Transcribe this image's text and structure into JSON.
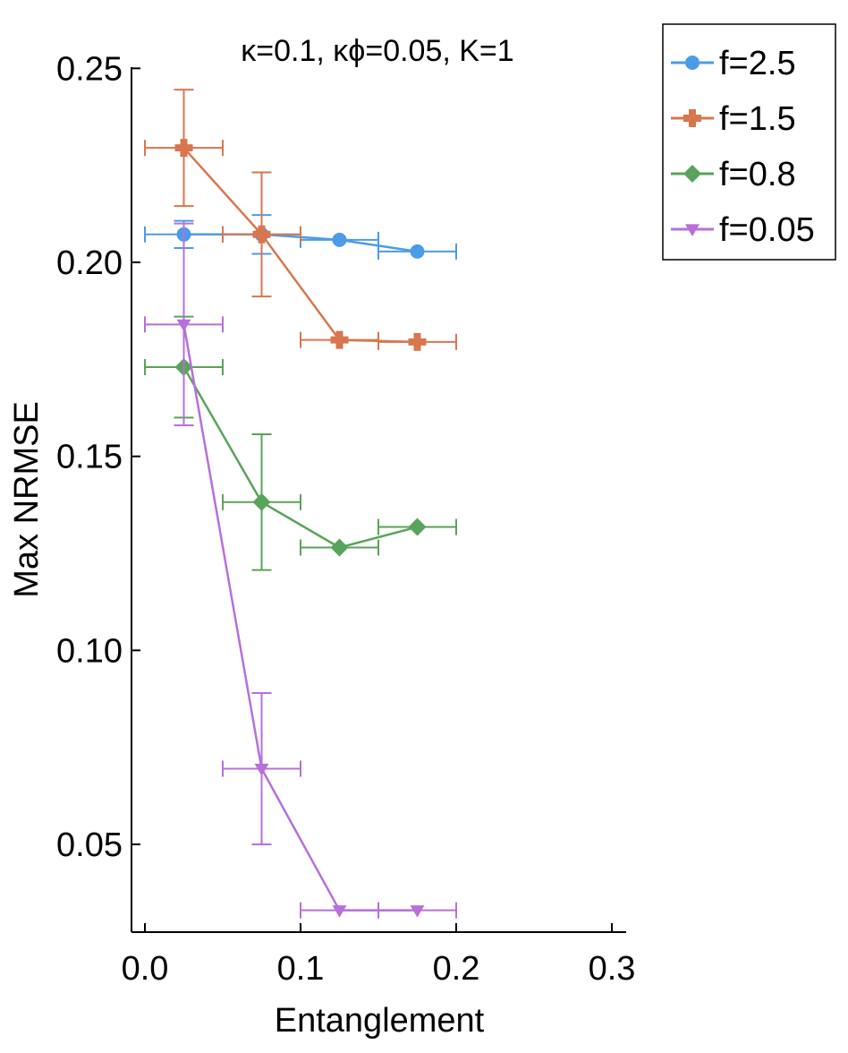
{
  "chart_data": {
    "type": "line",
    "title": "κ=0.1, κϕ=0.05, K=1",
    "xlabel": "Entanglement",
    "ylabel": "Max NRMSE",
    "xlim": [
      -0.01,
      0.31
    ],
    "ylim": [
      0.027,
      0.25
    ],
    "xticks": [
      0.0,
      0.1,
      0.2,
      0.3
    ],
    "xtick_labels": [
      "0.0",
      "0.1",
      "0.2",
      "0.3"
    ],
    "yticks": [
      0.05,
      0.1,
      0.15,
      0.2,
      0.25
    ],
    "ytick_labels": [
      "0.05",
      "0.10",
      "0.15",
      "0.20",
      "0.25"
    ],
    "grid": false,
    "legend_position": "outside-top-right",
    "series": [
      {
        "name": "f=2.5",
        "color": "#4c9be8",
        "marker": "circle",
        "x": [
          0.025,
          0.075,
          0.125,
          0.175
        ],
        "y": [
          0.2072,
          0.2072,
          0.2058,
          0.2028
        ],
        "xerr": [
          0.025,
          0.025,
          0.025,
          0.025
        ],
        "yerr": [
          0.0035,
          0.005,
          0.0,
          0.0
        ]
      },
      {
        "name": "f=1.5",
        "color": "#d8764e",
        "marker": "plus",
        "x": [
          0.025,
          0.075,
          0.125,
          0.175
        ],
        "y": [
          0.2295,
          0.2072,
          0.18,
          0.1795
        ],
        "xerr": [
          0.025,
          0.025,
          0.025,
          0.025
        ],
        "yerr": [
          0.015,
          0.016,
          0.0,
          0.0
        ]
      },
      {
        "name": "f=0.8",
        "color": "#5aa35a",
        "marker": "diamond",
        "x": [
          0.025,
          0.075,
          0.125,
          0.175
        ],
        "y": [
          0.173,
          0.1382,
          0.1265,
          0.1318
        ],
        "xerr": [
          0.025,
          0.025,
          0.025,
          0.025
        ],
        "yerr": [
          0.013,
          0.0175,
          0.0,
          0.0
        ]
      },
      {
        "name": "f=0.05",
        "color": "#b76fdb",
        "marker": "triangle-down",
        "x": [
          0.025,
          0.075,
          0.125,
          0.175
        ],
        "y": [
          0.184,
          0.0695,
          0.033,
          0.033
        ],
        "xerr": [
          0.025,
          0.025,
          0.025,
          0.025
        ],
        "yerr": [
          0.026,
          0.0195,
          0.0,
          0.0
        ]
      }
    ]
  }
}
